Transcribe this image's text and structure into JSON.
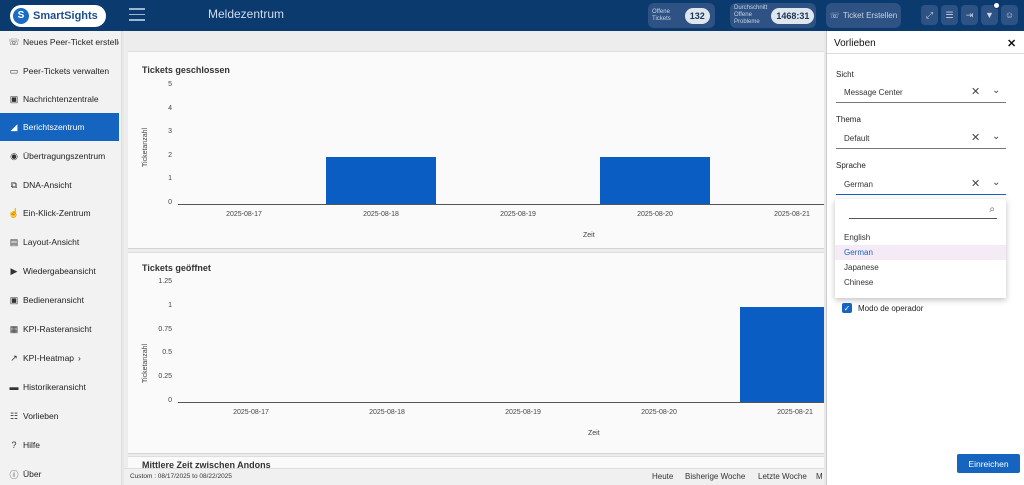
{
  "app": {
    "logo_text": "SmartSights",
    "logo_letter": "S",
    "page_title": "Meldezentrum"
  },
  "header": {
    "open_tickets_label_1": "Offene",
    "open_tickets_label_2": "Tickets",
    "open_tickets_value": "132",
    "avg_label_1": "Durchschnitt",
    "avg_label_2": "Offene",
    "avg_label_3": "Probleme",
    "avg_value": "1468:31",
    "create_ticket_label": "Ticket Erstellen",
    "icons": [
      "expand-icon",
      "list-icon",
      "export-icon",
      "filter-icon",
      "user-icon"
    ]
  },
  "sidebar": {
    "items": [
      {
        "label": "Neues Peer-Ticket erstellen",
        "icon": "phone-icon"
      },
      {
        "label": "Peer-Tickets verwalten",
        "icon": "folder-icon"
      },
      {
        "label": "Nachrichtenzentrale",
        "icon": "message-center-icon"
      },
      {
        "label": "Berichtszentrum",
        "icon": "chart-icon"
      },
      {
        "label": "Übertragungszentrum",
        "icon": "broadcast-icon"
      },
      {
        "label": "DNA-Ansicht",
        "icon": "dna-icon"
      },
      {
        "label": "Ein-Klick-Zentrum",
        "icon": "click-icon"
      },
      {
        "label": "Layout-Ansicht",
        "icon": "layout-icon"
      },
      {
        "label": "Wiedergabeansicht",
        "icon": "replay-icon"
      },
      {
        "label": "Bedieneransicht",
        "icon": "operator-icon"
      },
      {
        "label": "KPI-Rasteransicht",
        "icon": "grid-icon"
      },
      {
        "label": "KPI-Heatmap",
        "icon": "heatmap-icon"
      },
      {
        "label": "Historikeransicht",
        "icon": "history-icon"
      },
      {
        "label": "Vorlieben",
        "icon": "settings-icon"
      },
      {
        "label": "Hilfe",
        "icon": "help-icon"
      },
      {
        "label": "Über",
        "icon": "info-icon"
      }
    ],
    "heatmap_chevron": "›"
  },
  "chart_data": [
    {
      "type": "bar",
      "title": "Tickets geschlossen",
      "xlabel": "Zeit",
      "ylabel": "Ticketanzahl",
      "categories": [
        "2025-08-17",
        "2025-08-18",
        "2025-08-19",
        "2025-08-20",
        "2025-08-21"
      ],
      "values": [
        0,
        2,
        0,
        2,
        0
      ],
      "yticks": [
        "0",
        "1",
        "2",
        "3",
        "4",
        "5"
      ],
      "ylim": [
        0,
        5
      ]
    },
    {
      "type": "bar",
      "title": "Tickets geöffnet",
      "xlabel": "Zeit",
      "ylabel": "Ticketanzahl",
      "categories": [
        "2025-08-17",
        "2025-08-18",
        "2025-08-19",
        "2025-08-20",
        "2025-08-21"
      ],
      "values": [
        0,
        0,
        0,
        0,
        1
      ],
      "yticks": [
        "0",
        "0.25",
        "0.5",
        "0.75",
        "1",
        "1.25"
      ],
      "ylim": [
        0,
        1.25
      ]
    }
  ],
  "third_chart_title": "Mittlere Zeit zwischen Andons",
  "footer": {
    "range": "Custom : 08/17/2025 to 08/22/2025",
    "links": [
      "Heute",
      "Bisherige Woche",
      "Letzte Woche",
      "M"
    ]
  },
  "preferences": {
    "title": "Vorlieben",
    "close": "✕",
    "view_label": "Sicht",
    "view_value": "Message Center",
    "theme_label": "Thema",
    "theme_value": "Default",
    "language_label": "Sprache",
    "language_value": "German",
    "language_options": [
      "English",
      "German",
      "Japanese",
      "Chinese"
    ],
    "selected_language_index": 1,
    "operator_mode_label": "Modo de operador",
    "operator_mode_checked": true,
    "submit_label": "Einreichen"
  },
  "colors": {
    "topbar": "#0b3a6e",
    "accent": "#1565c0",
    "bar": "#0a5dc2"
  }
}
